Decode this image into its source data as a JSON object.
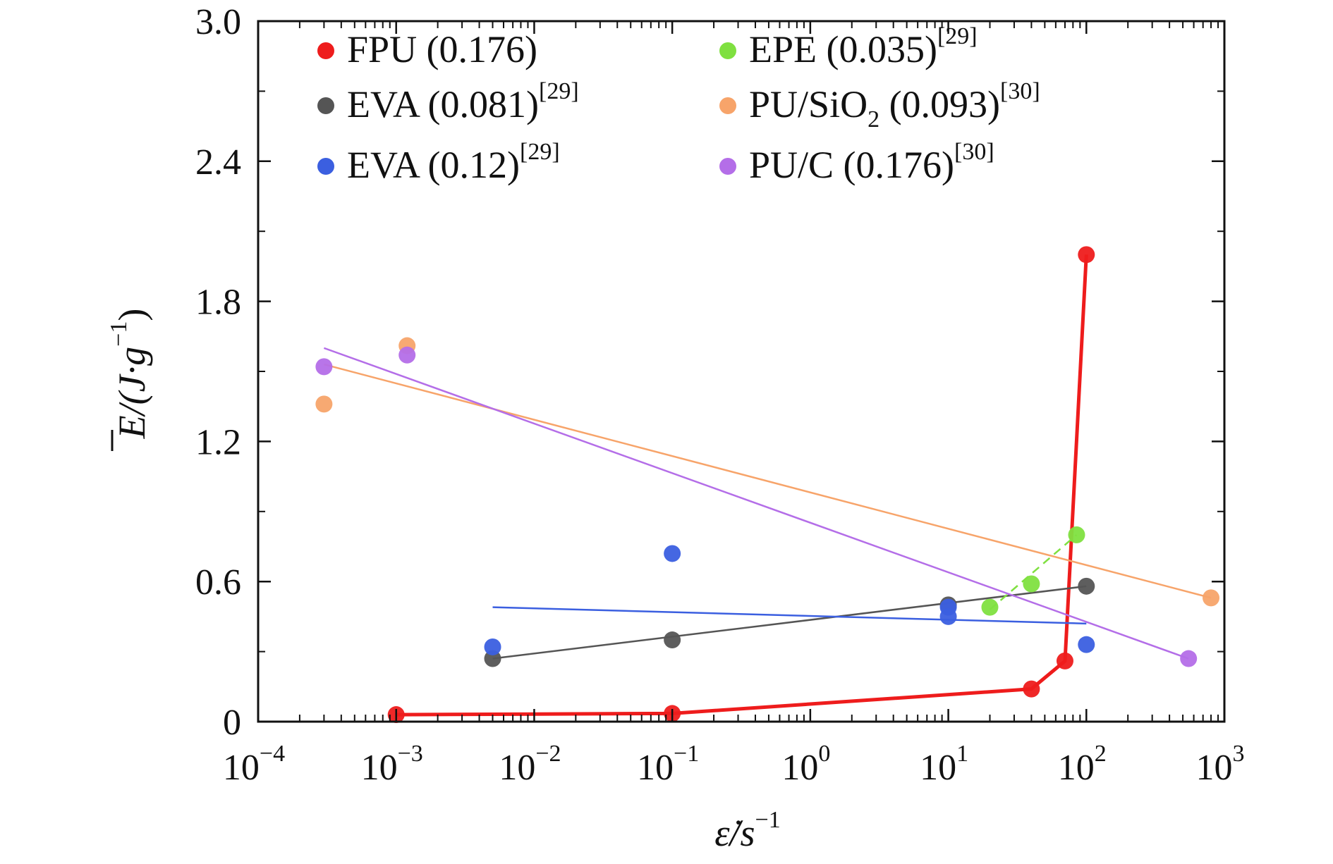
{
  "chart_data": {
    "type": "scatter",
    "x_scale": "log",
    "xlim": [
      0.0001,
      1000
    ],
    "ylim": [
      0,
      3.0
    ],
    "x_ticks": [
      0.0001,
      0.001,
      0.01,
      0.1,
      1,
      10,
      100,
      1000
    ],
    "x_tick_labels": [
      {
        "base": "10",
        "exp": "−4"
      },
      {
        "base": "10",
        "exp": "−3"
      },
      {
        "base": "10",
        "exp": "−2"
      },
      {
        "base": "10",
        "exp": "−1"
      },
      {
        "base": "10",
        "exp": "0"
      },
      {
        "base": "10",
        "exp": "1"
      },
      {
        "base": "10",
        "exp": "2"
      },
      {
        "base": "10",
        "exp": "3"
      }
    ],
    "y_ticks": [
      0,
      0.6,
      1.2,
      1.8,
      2.4,
      3.0
    ],
    "y_tick_labels": [
      "0",
      "0.6",
      "1.2",
      "1.8",
      "2.4",
      "3.0"
    ],
    "xlabel": {
      "main": "ε̇/s",
      "exp": "−1"
    },
    "ylabel": {
      "main": "E/(J·g",
      "exp": "−1",
      "close": ")"
    },
    "grid": false,
    "legend_placement": "top",
    "series": [
      {
        "name": "FPU (0.176)",
        "ref": "",
        "color": "#ee1c1c",
        "x": [
          0.001,
          0.1,
          40,
          70,
          100
        ],
        "y": [
          0.03,
          0.035,
          0.14,
          0.26,
          2.0
        ],
        "line": "connect"
      },
      {
        "name": "EVA (0.081)",
        "ref": "[29]",
        "color": "#555555",
        "x": [
          0.005,
          0.1,
          10,
          100
        ],
        "y": [
          0.27,
          0.35,
          0.5,
          0.58
        ],
        "line": {
          "x": [
            0.005,
            100
          ],
          "y": [
            0.27,
            0.58
          ]
        }
      },
      {
        "name": "EVA (0.12)",
        "ref": "[29]",
        "color": "#3b5fe0",
        "x": [
          0.005,
          0.1,
          10,
          10,
          100
        ],
        "y": [
          0.32,
          0.72,
          0.49,
          0.45,
          0.33
        ],
        "line": {
          "x": [
            0.005,
            100
          ],
          "y": [
            0.49,
            0.42
          ]
        }
      },
      {
        "name": "EPE (0.035)",
        "ref": "[29]",
        "color": "#7fe040",
        "x": [
          20,
          40,
          85
        ],
        "y": [
          0.49,
          0.59,
          0.8
        ],
        "line": {
          "x": [
            20,
            85
          ],
          "y": [
            0.48,
            0.8
          ],
          "dashed": true
        }
      },
      {
        "name": "PU/SiO2 (0.093)",
        "ref": "[30]",
        "color": "#f7a46a",
        "x": [
          0.0003,
          0.0012,
          800
        ],
        "y": [
          1.36,
          1.61,
          0.53
        ],
        "line": {
          "x": [
            0.0003,
            800
          ],
          "y": [
            1.53,
            0.53
          ]
        }
      },
      {
        "name": "PU/C (0.176)",
        "ref": "[30]",
        "color": "#b46ee8",
        "x": [
          0.0003,
          0.0012,
          550
        ],
        "y": [
          1.52,
          1.57,
          0.27
        ],
        "line": {
          "x": [
            0.0003,
            550
          ],
          "y": [
            1.6,
            0.27
          ]
        }
      }
    ]
  }
}
